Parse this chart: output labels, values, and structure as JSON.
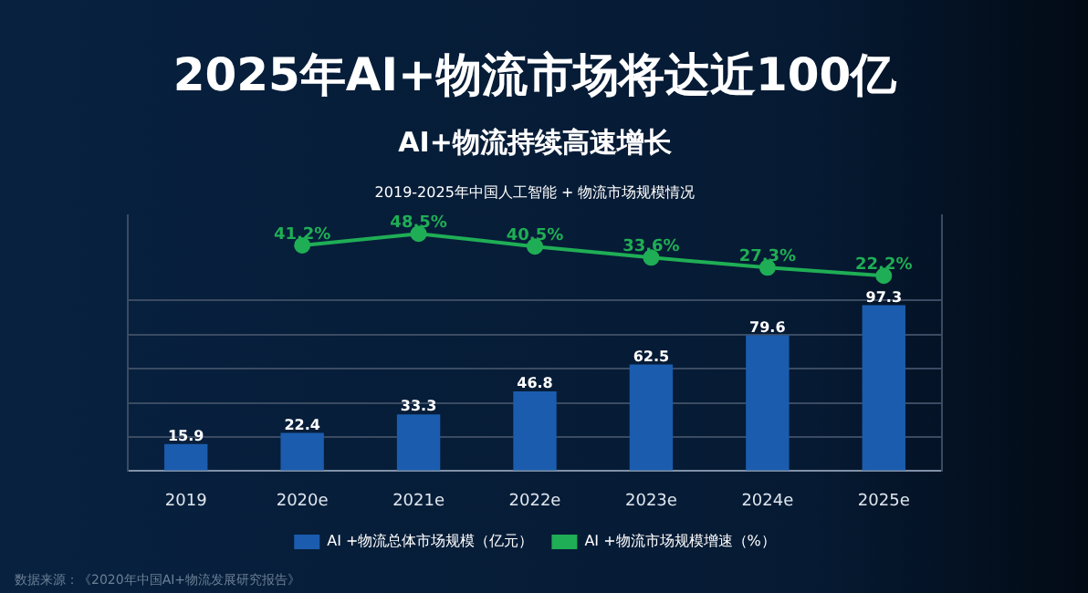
{
  "chart_data": {
    "type": "bar",
    "title": "2025年AI+物流市场将达近100亿",
    "subtitle": "AI+物流持续高速增长",
    "annotations": [
      "2019-2025年中国人工智能 + 物流市场规模情况",
      "数据来源：《2020年中国AI+物流发展研究报告》"
    ],
    "categories": [
      "2019",
      "2020e",
      "2021e",
      "2022e",
      "2023e",
      "2024e",
      "2025e"
    ],
    "series": [
      {
        "name": "AI +物流总体市场规模（亿元）",
        "color": "#1b5cae",
        "values": [
          15.9,
          22.4,
          33.3,
          46.8,
          62.5,
          79.6,
          97.3
        ]
      },
      {
        "name": "AI +物流市场规模增速（%）",
        "type": "line",
        "axis": "y2",
        "color": "#1fae55",
        "values": [
          null,
          41.2,
          48.5,
          40.5,
          33.6,
          27.3,
          22.2
        ],
        "value_labels": [
          null,
          "41.2%",
          "48.5%",
          "40.5%",
          "33.6%",
          "27.3%",
          "22.2%"
        ]
      }
    ],
    "ylim": [
      0,
      150
    ],
    "y2lim": [
      -100,
      60
    ],
    "yticks": [
      {
        "value": 0,
        "label": null
      },
      {
        "value": 20,
        "label": null
      },
      {
        "value": 40,
        "label": null
      },
      {
        "value": 60,
        "label": null
      },
      {
        "value": 80,
        "label": null
      },
      {
        "value": 100,
        "label": null
      }
    ],
    "grid": "y",
    "legend": "bottom",
    "tick_labels": "x",
    "marker": "circle",
    "data_labels": true
  }
}
